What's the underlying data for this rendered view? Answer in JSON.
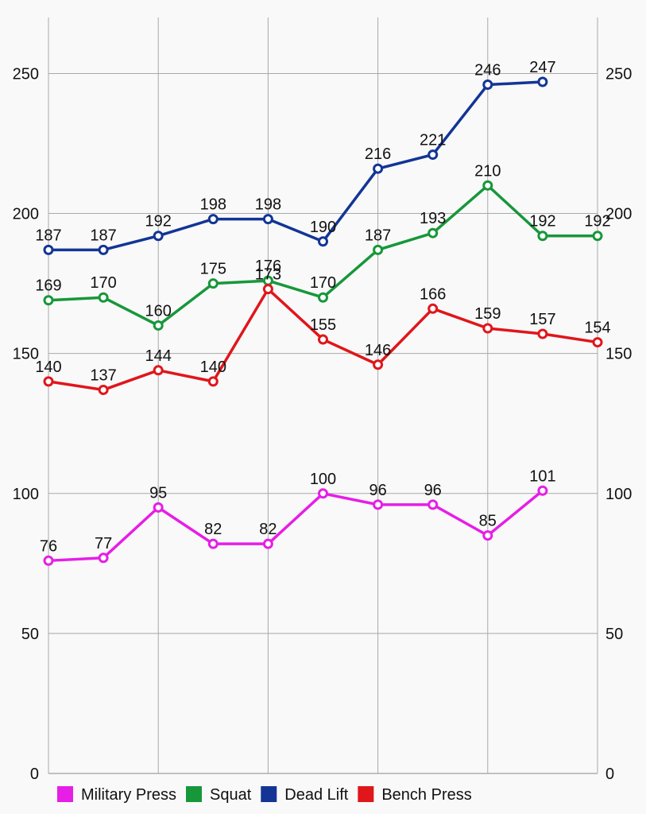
{
  "chart_data": {
    "type": "line",
    "x": [
      1,
      2,
      3,
      4,
      5,
      6,
      7,
      8,
      9,
      10,
      11
    ],
    "ylim": [
      0,
      270
    ],
    "yticks": [
      0,
      50,
      100,
      150,
      200,
      250
    ],
    "grid": true,
    "legend_position": "bottom-left",
    "series": [
      {
        "name": "Military Press",
        "color": "#e61ee6",
        "values": [
          76,
          77,
          95,
          82,
          82,
          100,
          96,
          96,
          85,
          101,
          null
        ]
      },
      {
        "name": "Squat",
        "color": "#17973a",
        "values": [
          169,
          170,
          160,
          175,
          176,
          170,
          187,
          193,
          210,
          192,
          192
        ]
      },
      {
        "name": "Dead Lift",
        "color": "#123596",
        "values": [
          187,
          187,
          192,
          198,
          198,
          190,
          216,
          221,
          246,
          247,
          null
        ]
      },
      {
        "name": "Bench Press",
        "color": "#e0161b",
        "values": [
          140,
          137,
          144,
          140,
          173,
          155,
          146,
          166,
          159,
          157,
          154
        ]
      }
    ]
  }
}
